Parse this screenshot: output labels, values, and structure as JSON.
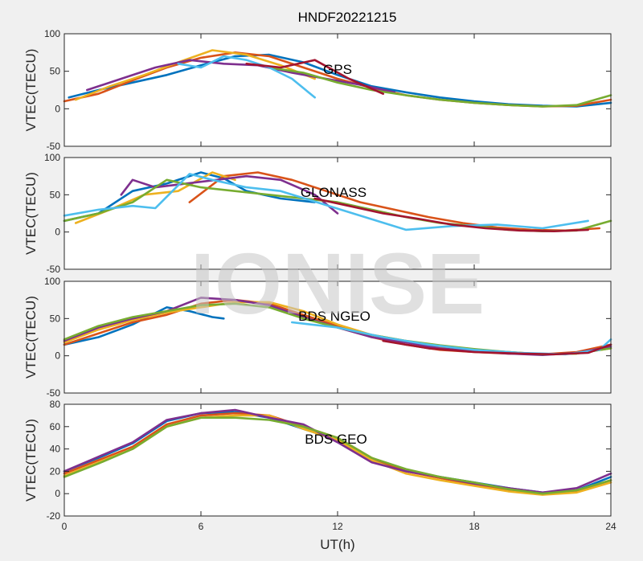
{
  "title": "HNDF20221215",
  "watermark": "IONISE",
  "xlabel": "UT(h)",
  "series_colors": [
    "#0072BD",
    "#D95319",
    "#EDB120",
    "#7E2F8E",
    "#77AC30",
    "#4DBEEE",
    "#A2142F"
  ],
  "chart_data": [
    {
      "type": "line",
      "label": "GPS",
      "ylabel": "VTEC(TECU)",
      "xlim": [
        0,
        24
      ],
      "ylim": [
        -50,
        100
      ],
      "xticks": [
        0,
        6,
        12,
        18,
        24
      ],
      "yticks": [
        -50,
        0,
        50,
        100
      ],
      "series": [
        {
          "x": [
            0.2,
            1.5,
            3,
            4.5,
            6,
            7.5,
            9,
            10.5,
            12,
            13.5,
            15,
            16.5,
            18,
            19.5,
            21,
            22.5,
            24
          ],
          "y": [
            15,
            25,
            35,
            45,
            58,
            70,
            72,
            62,
            45,
            30,
            22,
            15,
            10,
            6,
            4,
            3,
            8
          ]
        },
        {
          "x": [
            0,
            1.5,
            3,
            4.5,
            6,
            7.5,
            9,
            10.5,
            12,
            13.5,
            15,
            16.5,
            18,
            19.5,
            21,
            22.5,
            24
          ],
          "y": [
            10,
            20,
            38,
            55,
            68,
            75,
            70,
            55,
            40,
            28,
            18,
            12,
            8,
            5,
            3,
            4,
            12
          ]
        },
        {
          "x": [
            0.5,
            2,
            3.5,
            5,
            6.5,
            8,
            9.5,
            11
          ],
          "y": [
            12,
            30,
            45,
            62,
            78,
            72,
            58,
            40
          ]
        },
        {
          "x": [
            1,
            2.5,
            4,
            5.5,
            7,
            8.5,
            10,
            11.5,
            13,
            14.5
          ],
          "y": [
            25,
            40,
            55,
            65,
            60,
            58,
            48,
            40,
            32,
            22
          ]
        },
        {
          "x": [
            9,
            10.5,
            12,
            13.5,
            15,
            16.5,
            18,
            19.5,
            21,
            22.5,
            24
          ],
          "y": [
            55,
            48,
            35,
            25,
            18,
            12,
            8,
            5,
            3,
            5,
            18
          ]
        },
        {
          "x": [
            5,
            6,
            7,
            8,
            9,
            10,
            11
          ],
          "y": [
            60,
            55,
            70,
            65,
            55,
            40,
            15
          ]
        },
        {
          "x": [
            8,
            9.5,
            11,
            12.5,
            14
          ],
          "y": [
            60,
            55,
            65,
            40,
            20
          ]
        }
      ]
    },
    {
      "type": "line",
      "label": "GLONASS",
      "ylabel": "VTEC(TECU)",
      "xlim": [
        0,
        24
      ],
      "ylim": [
        -50,
        100
      ],
      "xticks": [
        0,
        6,
        12,
        18,
        24
      ],
      "yticks": [
        -50,
        0,
        50,
        100
      ],
      "series": [
        {
          "x": [
            0,
            1.5,
            3,
            4.5,
            6,
            7,
            8,
            9.5,
            11
          ],
          "y": [
            15,
            25,
            55,
            65,
            80,
            72,
            55,
            45,
            40
          ]
        },
        {
          "x": [
            5.5,
            7,
            8.5,
            10,
            11.5,
            13,
            14.5,
            16,
            17.5,
            19,
            20.5,
            22,
            23.5
          ],
          "y": [
            40,
            75,
            80,
            70,
            55,
            40,
            30,
            20,
            12,
            6,
            3,
            2,
            5
          ]
        },
        {
          "x": [
            0.5,
            2,
            3.5,
            5,
            6.5,
            7.5
          ],
          "y": [
            12,
            30,
            50,
            55,
            80,
            70
          ]
        },
        {
          "x": [
            2.5,
            3,
            4,
            8,
            9.5,
            11,
            12
          ],
          "y": [
            50,
            70,
            60,
            75,
            70,
            50,
            25
          ]
        },
        {
          "x": [
            0,
            1.5,
            3,
            4.5,
            6,
            12,
            13.5,
            15,
            16.5,
            18,
            19.5,
            21,
            22.5,
            24
          ],
          "y": [
            15,
            25,
            40,
            70,
            60,
            40,
            30,
            20,
            12,
            8,
            3,
            1,
            2,
            15
          ]
        },
        {
          "x": [
            0,
            1.5,
            3,
            4,
            5.5,
            6.5,
            8,
            9.5,
            15,
            17,
            19,
            21,
            23
          ],
          "y": [
            22,
            30,
            35,
            32,
            78,
            70,
            60,
            55,
            3,
            8,
            10,
            5,
            15
          ]
        },
        {
          "x": [
            11,
            12.5,
            14,
            15.5,
            17,
            18.5,
            20,
            21.5,
            23
          ],
          "y": [
            45,
            35,
            25,
            18,
            10,
            5,
            2,
            1,
            3
          ]
        }
      ]
    },
    {
      "type": "line",
      "label": "BDS NGEO",
      "ylabel": "VTEC(TECU)",
      "xlim": [
        0,
        24
      ],
      "ylim": [
        -50,
        100
      ],
      "xticks": [
        0,
        6,
        12,
        18,
        24
      ],
      "yticks": [
        -50,
        0,
        50,
        100
      ],
      "series": [
        {
          "x": [
            0,
            1.5,
            3,
            4.5,
            5.5,
            6.5,
            7
          ],
          "y": [
            15,
            25,
            42,
            65,
            60,
            52,
            50
          ]
        },
        {
          "x": [
            0,
            1.5,
            3,
            4.5,
            6,
            7.5,
            9,
            10.5,
            12,
            13.5,
            15,
            16.5,
            18,
            19.5,
            21,
            22.5,
            24
          ],
          "y": [
            15,
            30,
            45,
            55,
            70,
            75,
            70,
            55,
            40,
            25,
            15,
            8,
            5,
            3,
            2,
            5,
            15
          ]
        },
        {
          "x": [
            0,
            1.5,
            3,
            4.5,
            6,
            7.5,
            9,
            10.5,
            12,
            13.5,
            15,
            16.5,
            18,
            19.5,
            21,
            22.5,
            24
          ],
          "y": [
            18,
            35,
            48,
            58,
            65,
            72,
            72,
            60,
            42,
            28,
            20,
            12,
            8,
            5,
            2,
            3,
            10
          ]
        },
        {
          "x": [
            0,
            1.5,
            3,
            4.5,
            6,
            7.5,
            9,
            10.5,
            12,
            13.5,
            15,
            16.5,
            18,
            19.5,
            21,
            22.5,
            24
          ],
          "y": [
            20,
            38,
            50,
            60,
            78,
            75,
            68,
            52,
            38,
            25,
            18,
            10,
            6,
            3,
            1,
            4,
            12
          ]
        },
        {
          "x": [
            0,
            1.5,
            3,
            4.5,
            6,
            7.5,
            9,
            10.5,
            12,
            13.5,
            15,
            16.5,
            18,
            19.5,
            21,
            22.5,
            24
          ],
          "y": [
            22,
            40,
            52,
            60,
            68,
            70,
            65,
            50,
            38,
            28,
            20,
            14,
            9,
            5,
            2,
            3,
            10
          ]
        },
        {
          "x": [
            10,
            12,
            14,
            16,
            18,
            20,
            22,
            23.5,
            24
          ],
          "y": [
            45,
            38,
            25,
            15,
            8,
            4,
            2,
            8,
            22
          ]
        },
        {
          "x": [
            14,
            16,
            18,
            20,
            21.5,
            23,
            24
          ],
          "y": [
            20,
            10,
            5,
            3,
            2,
            4,
            15
          ]
        }
      ]
    },
    {
      "type": "line",
      "label": "BDS GEO",
      "ylabel": "VTEC(TECU)",
      "xlim": [
        0,
        24
      ],
      "ylim": [
        -20,
        80
      ],
      "xticks": [
        0,
        6,
        12,
        18,
        24
      ],
      "yticks": [
        -20,
        0,
        20,
        40,
        60,
        80
      ],
      "series": [
        {
          "x": [
            0,
            1.5,
            3,
            4.5,
            6,
            7.5,
            9,
            10.5,
            12,
            13.5,
            15,
            16.5,
            18,
            19.5,
            21,
            22.5,
            24
          ],
          "y": [
            20,
            32,
            45,
            65,
            72,
            73,
            68,
            58,
            48,
            30,
            20,
            15,
            10,
            5,
            1,
            3,
            15
          ]
        },
        {
          "x": [
            0,
            1.5,
            3,
            4.5,
            6,
            7.5,
            9,
            10.5,
            12,
            13.5,
            15,
            16.5,
            18,
            19.5,
            21,
            22.5,
            24
          ],
          "y": [
            18,
            30,
            42,
            62,
            70,
            72,
            70,
            60,
            50,
            32,
            20,
            14,
            8,
            3,
            0,
            2,
            12
          ]
        },
        {
          "x": [
            0,
            1.5,
            3,
            4.5,
            6,
            7.5,
            9,
            10.5,
            12,
            13.5,
            15,
            16.5,
            18,
            19.5,
            21,
            22.5,
            24
          ],
          "y": [
            16,
            28,
            40,
            60,
            68,
            70,
            70,
            58,
            48,
            30,
            18,
            12,
            7,
            2,
            -1,
            1,
            10
          ]
        },
        {
          "x": [
            0,
            1.5,
            3,
            4.5,
            6,
            7.5,
            9,
            10.5,
            12,
            13.5,
            15,
            16.5,
            18,
            19.5,
            21,
            22.5,
            24
          ],
          "y": [
            20,
            33,
            46,
            66,
            72,
            75,
            68,
            62,
            46,
            28,
            20,
            15,
            9,
            5,
            1,
            5,
            18
          ]
        },
        {
          "x": [
            0,
            1.5,
            3,
            4.5,
            6,
            7.5,
            9,
            10.5,
            12,
            13.5,
            15,
            16.5,
            18,
            19.5,
            21,
            22.5,
            24
          ],
          "y": [
            15,
            27,
            40,
            60,
            68,
            68,
            66,
            60,
            50,
            32,
            22,
            15,
            10,
            4,
            0,
            3,
            12
          ]
        }
      ]
    }
  ]
}
